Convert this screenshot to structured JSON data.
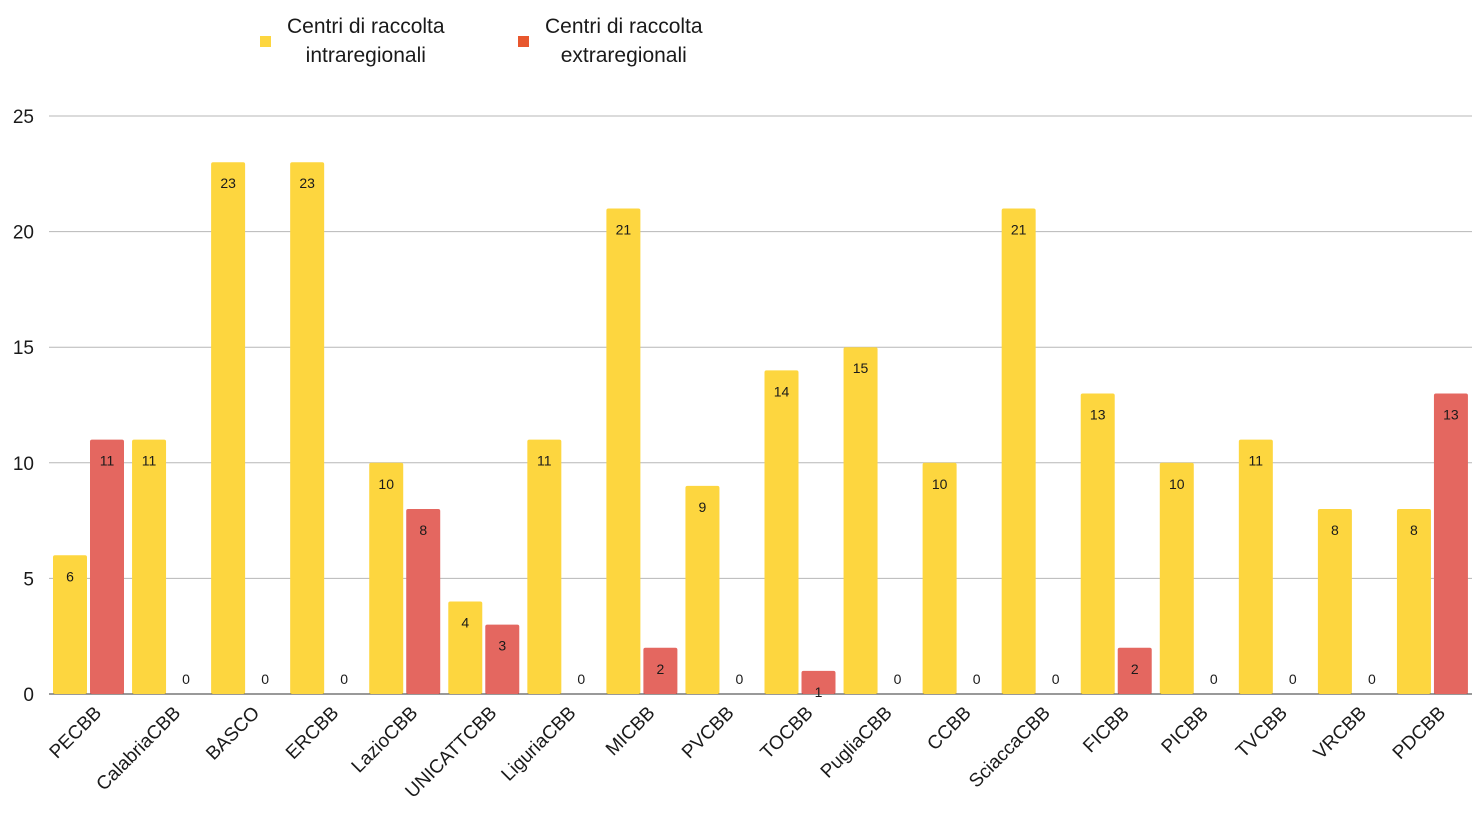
{
  "chart_data": {
    "type": "bar",
    "title": "",
    "xlabel": "",
    "ylabel": "",
    "ylim": [
      0,
      25
    ],
    "yticks": [
      0,
      5,
      10,
      15,
      20,
      25
    ],
    "grid": true,
    "legend_position": "top-center",
    "categories": [
      "PECBB",
      "CalabriaCBB",
      "BASCO",
      "ERCBB",
      "LazioCBB",
      "UNICATTCBB",
      "LiguriaCBB",
      "MICBB",
      "PVCBB",
      "TOCBB",
      "PugliaCBB",
      "CCBB",
      "SciaccaCBB",
      "FICBB",
      "PICBB",
      "TVCBB",
      "VRCBB",
      "PDCBB"
    ],
    "series": [
      {
        "name": "Centri di raccolta\nintraregionali",
        "color": "#FDD63F",
        "legend_color": "#FDD63F",
        "values": [
          6,
          11,
          23,
          23,
          10,
          4,
          11,
          21,
          9,
          14,
          15,
          10,
          21,
          13,
          10,
          11,
          8,
          8
        ]
      },
      {
        "name": "Centri di raccolta\nextraregionali",
        "color": "#E46760",
        "legend_color": "#E8572E",
        "values": [
          11,
          0,
          0,
          0,
          8,
          3,
          0,
          2,
          0,
          1,
          0,
          0,
          0,
          2,
          0,
          0,
          0,
          13
        ]
      }
    ]
  }
}
